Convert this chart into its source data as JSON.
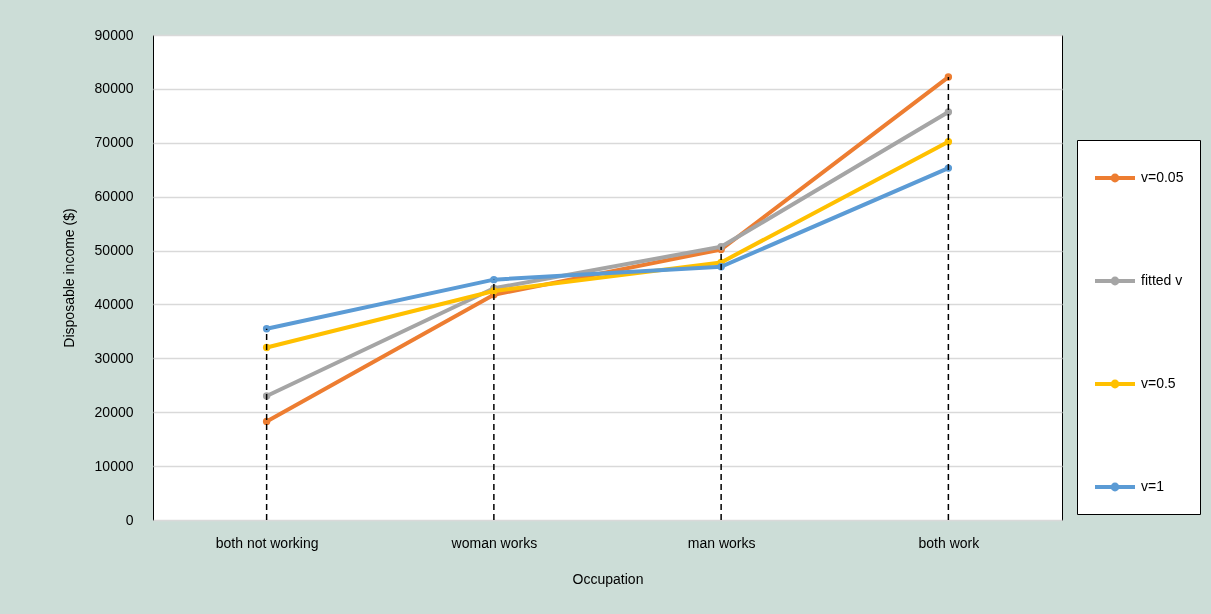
{
  "chart_data": {
    "type": "line",
    "xlabel": "Occupation",
    "ylabel": "Disposable income ($)",
    "categories": [
      "both not working",
      "woman works",
      "man works",
      "both work"
    ],
    "series": [
      {
        "name": "v=0.05",
        "color": "#ed7d31",
        "values": [
          18300,
          41800,
          50200,
          82200
        ]
      },
      {
        "name": "fitted v",
        "color": "#a5a5a5",
        "values": [
          23000,
          43000,
          50700,
          75700
        ]
      },
      {
        "name": "v=0.5",
        "color": "#ffc000",
        "values": [
          32000,
          42500,
          47800,
          70200
        ]
      },
      {
        "name": "v=1",
        "color": "#5b9bd5",
        "values": [
          35500,
          44600,
          47000,
          65300
        ]
      }
    ],
    "ylim": [
      0,
      90000
    ],
    "yticks": [
      0,
      10000,
      20000,
      30000,
      40000,
      50000,
      60000,
      70000,
      80000,
      90000
    ],
    "grid": "y",
    "legend": "right",
    "marker": "circle",
    "line_style": "solid",
    "ref_lines": [
      {
        "axis": "x",
        "value": "both not working",
        "color": "#000000",
        "line_style": "dashed"
      },
      {
        "axis": "x",
        "value": "woman works",
        "color": "#000000",
        "line_style": "dashed"
      },
      {
        "axis": "x",
        "value": "man works",
        "color": "#000000",
        "line_style": "dashed"
      },
      {
        "axis": "x",
        "value": "both work",
        "color": "#000000",
        "line_style": "dashed"
      }
    ]
  }
}
